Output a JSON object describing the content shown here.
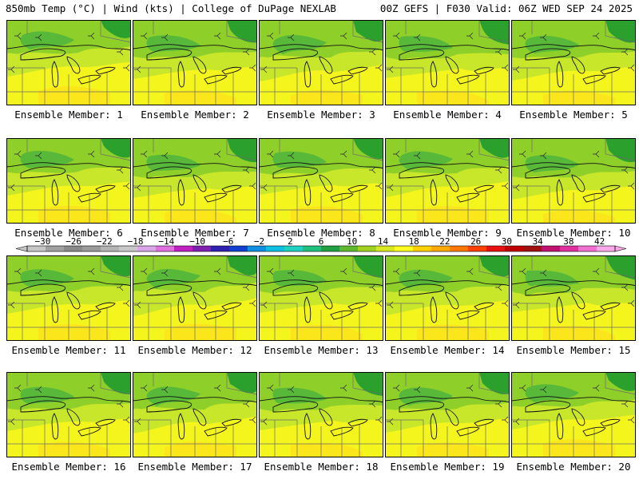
{
  "header": {
    "title_left": "850mb Temp (°C) | Wind (kts) | College of DuPage NEXLAB",
    "title_right": "00Z GEFS | F030 Valid: 06Z WED SEP 24 2025"
  },
  "panels": [
    {
      "label": "Ensemble Member: 1"
    },
    {
      "label": "Ensemble Member: 2"
    },
    {
      "label": "Ensemble Member: 3"
    },
    {
      "label": "Ensemble Member: 4"
    },
    {
      "label": "Ensemble Member: 5"
    },
    {
      "label": "Ensemble Member: 6"
    },
    {
      "label": "Ensemble Member: 7"
    },
    {
      "label": "Ensemble Member: 8"
    },
    {
      "label": "Ensemble Member: 9"
    },
    {
      "label": "Ensemble Member: 10"
    },
    {
      "label": "Ensemble Member: 11"
    },
    {
      "label": "Ensemble Member: 12"
    },
    {
      "label": "Ensemble Member: 13"
    },
    {
      "label": "Ensemble Member: 14"
    },
    {
      "label": "Ensemble Member: 15"
    },
    {
      "label": "Ensemble Member: 16"
    },
    {
      "label": "Ensemble Member: 17"
    },
    {
      "label": "Ensemble Member: 18"
    },
    {
      "label": "Ensemble Member: 19"
    },
    {
      "label": "Ensemble Member: 20"
    }
  ],
  "colorbar": {
    "tick_labels": [
      "-30",
      "-26",
      "-22",
      "-18",
      "-14",
      "-10",
      "-6",
      "-2",
      "2",
      "6",
      "10",
      "14",
      "18",
      "22",
      "26",
      "30",
      "34",
      "38",
      "42"
    ],
    "colors": [
      "#c6c6c6",
      "#a0a0a0",
      "#8a8a8a",
      "#9a9a9a",
      "#b4b4b4",
      "#c8c8c8",
      "#d8a6e6",
      "#e070e0",
      "#c020c0",
      "#8020b0",
      "#3020b0",
      "#1040d0",
      "#1090e0",
      "#10c0e0",
      "#20d0c0",
      "#20c080",
      "#20a040",
      "#60b830",
      "#a0d020",
      "#d8e820",
      "#fcfc20",
      "#ffd000",
      "#ffa800",
      "#ff7800",
      "#ff4000",
      "#e81010",
      "#c00000",
      "#a01010",
      "#c01070",
      "#e030a0",
      "#f070d0",
      "#f8a8e8"
    ],
    "value_min": -32,
    "value_max": 44,
    "step": 2
  },
  "map_colors": {
    "dark_green": "#2ca02c",
    "green": "#57b83a",
    "light_green": "#8fcf2a",
    "yellow_green": "#c8e62a",
    "yellow": "#f5f51e",
    "gold": "#fae61a"
  }
}
